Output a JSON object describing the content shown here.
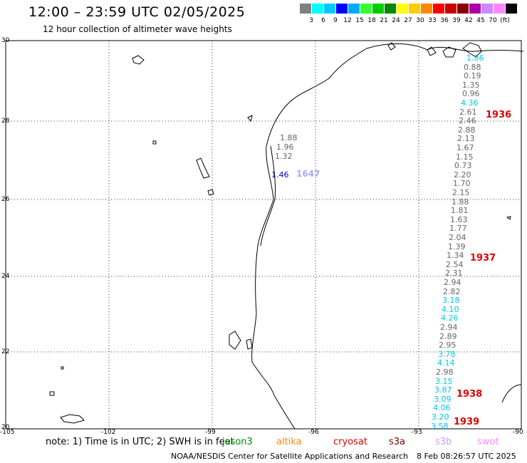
{
  "title": "12:00 – 23:59 UTC 02/05/2025",
  "subtitle": "12 hour collection of altimeter wave heights",
  "color_scale": {
    "unit": "(ft)",
    "labels": [
      "3",
      "6",
      "9",
      "12",
      "15",
      "18",
      "21",
      "24",
      "27",
      "30",
      "33",
      "36",
      "39",
      "42",
      "45",
      "70"
    ],
    "colors": [
      "#7f7f7f",
      "#00ffff",
      "#00c8ff",
      "#0000ff",
      "#00aaff",
      "#33ff33",
      "#00cc00",
      "#008800",
      "#ffff00",
      "#ffcc00",
      "#ff8800",
      "#ff0000",
      "#cc0000",
      "#880000",
      "#aa00aa",
      "#cc88ff",
      "#ff88ff",
      "#000000"
    ]
  },
  "axes": {
    "lat_labels": [
      "30",
      "28",
      "26",
      "24",
      "22",
      "20"
    ],
    "lon_labels": [
      "-105",
      "-102",
      "-99",
      "-96",
      "-93",
      "-90"
    ]
  },
  "observations": [
    {
      "value": "1.86",
      "color": "#00c8e0"
    },
    {
      "value": "0.88",
      "color": "#666666"
    },
    {
      "value": "0.19",
      "color": "#666666"
    },
    {
      "value": "1.35",
      "color": "#666666"
    },
    {
      "value": "0.96",
      "color": "#666666"
    },
    {
      "value": "4.36",
      "color": "#00c8e0"
    },
    {
      "value": "2.61",
      "color": "#666666"
    },
    {
      "value": "2.46",
      "color": "#666666"
    },
    {
      "value": "2.88",
      "color": "#666666"
    },
    {
      "value": "2.13",
      "color": "#666666"
    },
    {
      "value": "1.67",
      "color": "#666666"
    },
    {
      "value": "1.15",
      "color": "#666666"
    },
    {
      "value": "0.73",
      "color": "#666666"
    },
    {
      "value": "2.20",
      "color": "#666666"
    },
    {
      "value": "1.70",
      "color": "#666666"
    },
    {
      "value": "2.15",
      "color": "#666666"
    },
    {
      "value": "1.88",
      "color": "#666666"
    },
    {
      "value": "1.81",
      "color": "#666666"
    },
    {
      "value": "1.63",
      "color": "#666666"
    },
    {
      "value": "1.77",
      "color": "#666666"
    },
    {
      "value": "2.04",
      "color": "#666666"
    },
    {
      "value": "1.39",
      "color": "#666666"
    },
    {
      "value": "1.34",
      "color": "#666666"
    },
    {
      "value": "2.54",
      "color": "#666666"
    },
    {
      "value": "2.31",
      "color": "#666666"
    },
    {
      "value": "2.94",
      "color": "#666666"
    },
    {
      "value": "2.82",
      "color": "#666666"
    },
    {
      "value": "3.18",
      "color": "#00c8e0"
    },
    {
      "value": "4.10",
      "color": "#00c8e0"
    },
    {
      "value": "4.26",
      "color": "#00c8e0"
    },
    {
      "value": "2.94",
      "color": "#666666"
    },
    {
      "value": "2.89",
      "color": "#666666"
    },
    {
      "value": "2.95",
      "color": "#666666"
    },
    {
      "value": "3.78",
      "color": "#00c8e0"
    },
    {
      "value": "4.14",
      "color": "#00c8e0"
    },
    {
      "value": "2.98",
      "color": "#666666"
    },
    {
      "value": "3.15",
      "color": "#00c8e0"
    },
    {
      "value": "3.87",
      "color": "#00c8e0"
    },
    {
      "value": "3.09",
      "color": "#00c8e0"
    },
    {
      "value": "4.06",
      "color": "#00c8e0"
    },
    {
      "value": "3.20",
      "color": "#00c8e0"
    },
    {
      "value": "3.58",
      "color": "#00c8e0"
    }
  ],
  "observations_track2": [
    {
      "value": "1.88",
      "color": "#666666"
    },
    {
      "value": "1.96",
      "color": "#666666"
    },
    {
      "value": "1.32",
      "color": "#666666"
    },
    {
      "value": "1.46",
      "color": "#0000cc"
    }
  ],
  "pass_times": [
    "1936",
    "1937",
    "1938",
    "1939"
  ],
  "track2_pass_time": "1647",
  "track2_pass_color": "#aaaaee",
  "footer": {
    "note": "note:  1) Time is in UTC; 2) SWH is in feet",
    "satellites": [
      {
        "name": "jason3",
        "color": "#008800"
      },
      {
        "name": "altika",
        "color": "#ff8800"
      },
      {
        "name": "cryosat",
        "color": "#dd0000"
      },
      {
        "name": "s3a",
        "color": "#880000"
      },
      {
        "name": "s3b",
        "color": "#cc99ff"
      },
      {
        "name": "swot",
        "color": "#ff88ff"
      }
    ],
    "credit": "NOAA/NESDIS Center for Satellite Applications and Research",
    "timestamp": "8 Feb 08:26:57 UTC 2025"
  }
}
